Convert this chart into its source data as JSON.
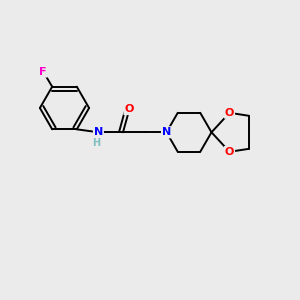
{
  "background_color": "#ebebeb",
  "bond_color": "#000000",
  "atom_colors": {
    "F": "#ff00cc",
    "O": "#ff0000",
    "N_amide": "#0000ff",
    "N_pip": "#0000ff",
    "H": "#7fbfbf",
    "C": "#000000"
  },
  "font_size_atoms": 8,
  "fig_width": 3.0,
  "fig_height": 3.0,
  "dpi": 100,
  "xlim": [
    0,
    10
  ],
  "ylim": [
    0,
    10
  ]
}
